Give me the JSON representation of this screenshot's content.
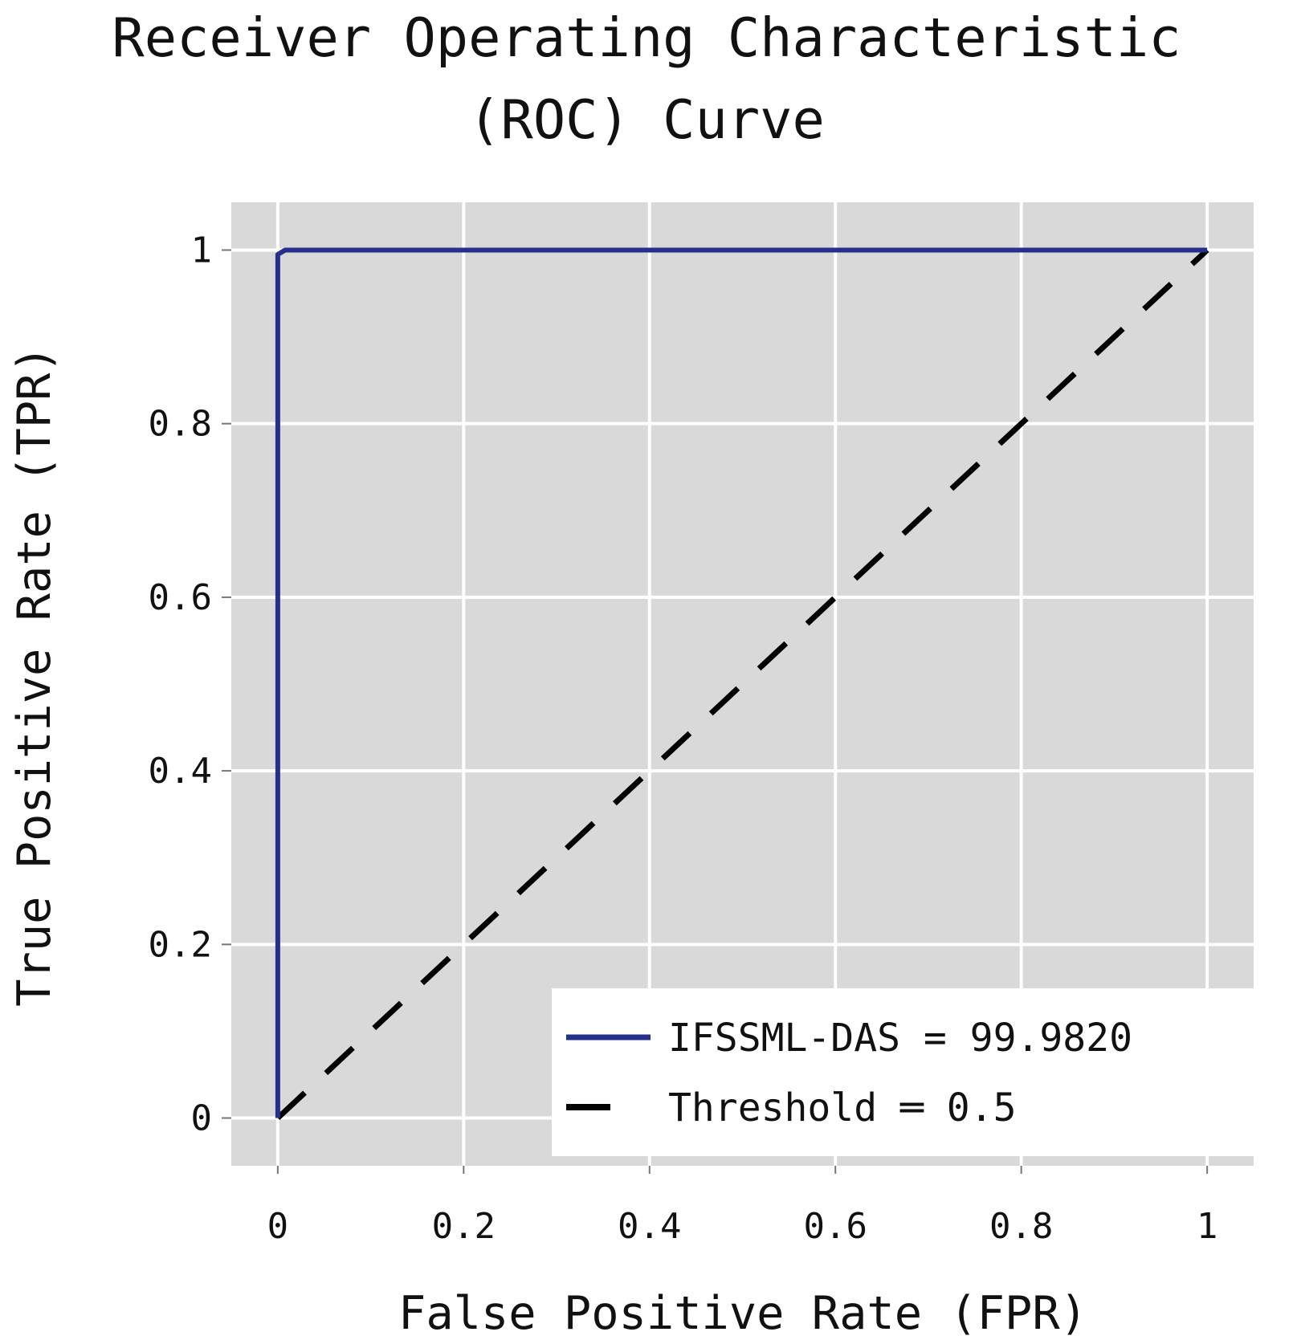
{
  "chart_data": {
    "type": "line",
    "title_lines": [
      "Receiver Operating Characteristic",
      "(ROC) Curve"
    ],
    "xlabel": "False Positive Rate (FPR)",
    "ylabel": "True Positive Rate (TPR)",
    "xlim": [
      -0.05,
      1.05
    ],
    "ylim": [
      -0.055,
      1.055
    ],
    "grid": true,
    "x_ticks": [
      0,
      0.2,
      0.4,
      0.6,
      0.8,
      1
    ],
    "x_tick_labels": [
      "0",
      "0.2",
      "0.4",
      "0.6",
      "0.8",
      "1"
    ],
    "y_ticks": [
      0,
      0.2,
      0.4,
      0.6,
      0.8,
      1
    ],
    "y_tick_labels": [
      "0",
      "0.2",
      "0.4",
      "0.6",
      "0.8",
      "1"
    ],
    "legend_position": "bottom-right",
    "series": [
      {
        "name": "IFSSML-DAS",
        "legend_label": "IFSSML-DAS = 99.9820",
        "style": "solid",
        "color": "#25308a",
        "x": [
          0,
          0,
          0.008,
          0.1,
          1
        ],
        "y": [
          0,
          0.995,
          1.0,
          1.0,
          1.0
        ]
      },
      {
        "name": "Threshold",
        "legend_label": "Threshold ═ 0.5",
        "style": "dashed",
        "color": "#000000",
        "x": [
          0,
          1
        ],
        "y": [
          0,
          1
        ]
      }
    ],
    "colors": {
      "panel_background": "#d9d9d9",
      "grid": "#ffffff",
      "text": "#111111",
      "legend_background": "#ffffff"
    }
  }
}
